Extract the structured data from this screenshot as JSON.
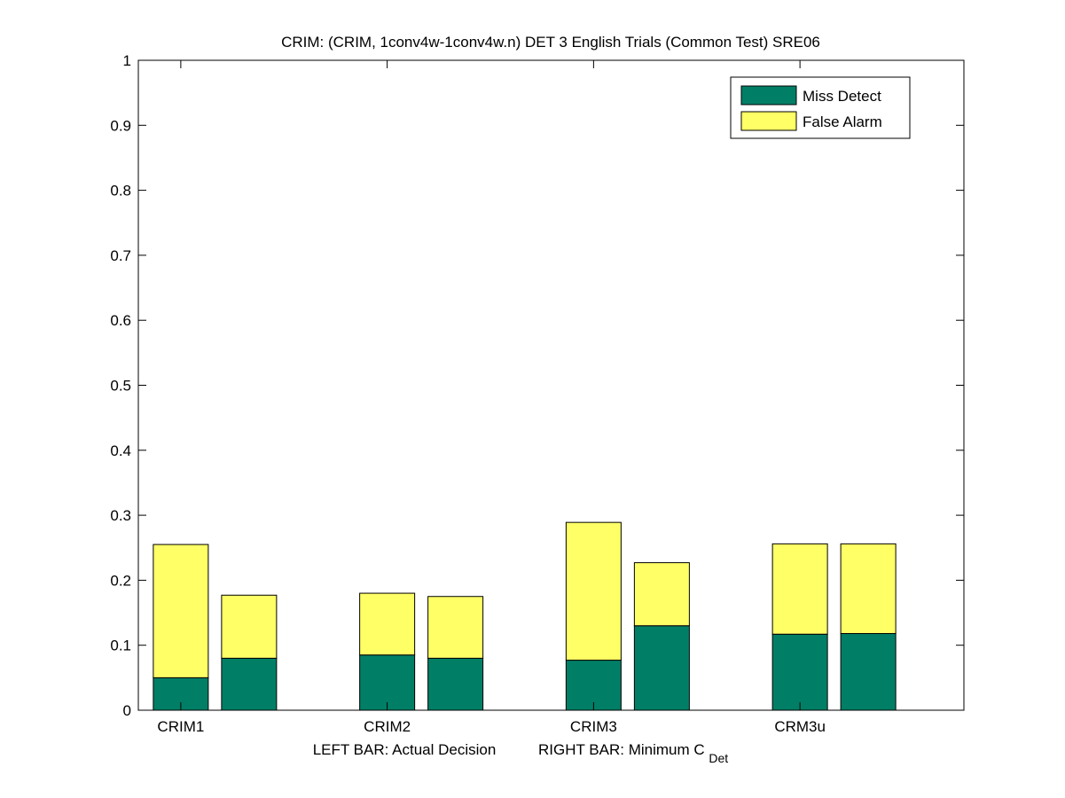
{
  "chart_data": {
    "type": "bar",
    "stacked": true,
    "title": "CRIM: (CRIM, 1conv4w-1conv4w.n) DET 3 English Trials (Common Test) SRE06",
    "xlabel": {
      "left_text": "LEFT BAR: Actual Decision",
      "right_text": "RIGHT BAR: Minimum C",
      "right_subscript": "Det"
    },
    "ylabel": "",
    "ylim": [
      0,
      1
    ],
    "yticks": [
      "0",
      "0.1",
      "0.2",
      "0.3",
      "0.4",
      "0.5",
      "0.6",
      "0.7",
      "0.8",
      "0.9",
      "1"
    ],
    "categories": [
      "CRIM1",
      "CRIM2",
      "CRIM3",
      "CRM3u"
    ],
    "bar_pairs": [
      "Actual Decision",
      "Minimum C_Det"
    ],
    "series": [
      {
        "name": "Miss Detect",
        "color": "#007f66",
        "left_values": [
          0.05,
          0.085,
          0.077,
          0.117
        ],
        "right_values": [
          0.08,
          0.08,
          0.13,
          0.118
        ]
      },
      {
        "name": "False Alarm",
        "color": "#ffff66",
        "left_values": [
          0.205,
          0.095,
          0.212,
          0.139
        ],
        "right_values": [
          0.097,
          0.095,
          0.097,
          0.138
        ]
      }
    ],
    "legend": {
      "placement": "top-right",
      "entries": [
        "Miss Detect",
        "False Alarm"
      ]
    },
    "grid": false
  }
}
